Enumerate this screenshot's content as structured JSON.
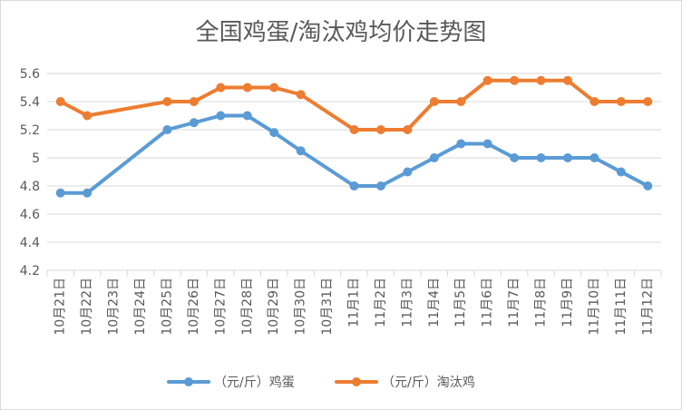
{
  "chart_data": {
    "type": "line",
    "title": "全国鸡蛋/淘汰鸡均价走势图",
    "xlabel": "",
    "ylabel": "",
    "categories": [
      "10月21日",
      "10月22日",
      "10月23日",
      "10月24日",
      "10月25日",
      "10月26日",
      "10月27日",
      "10月28日",
      "10月29日",
      "10月30日",
      "10月31日",
      "11月1日",
      "11月2日",
      "11月3日",
      "11月4日",
      "11月5日",
      "11月6日",
      "11月7日",
      "11月8日",
      "11月9日",
      "11月10日",
      "11月11日",
      "11月12日"
    ],
    "y_ticks": [
      "4.2",
      "4.4",
      "4.6",
      "4.8",
      "5",
      "5.2",
      "5.4",
      "5.6"
    ],
    "ylim": [
      4.2,
      5.6
    ],
    "grid": true,
    "legend_position": "bottom",
    "series": [
      {
        "name": "（元/斤）鸡蛋",
        "color": "#5b9bd5",
        "values": [
          4.75,
          4.75,
          null,
          null,
          5.2,
          5.25,
          5.3,
          5.3,
          5.18,
          5.05,
          null,
          4.8,
          4.8,
          4.9,
          5.0,
          5.1,
          5.1,
          5.0,
          5.0,
          5.0,
          5.0,
          4.9,
          4.8
        ]
      },
      {
        "name": "（元/斤）淘汰鸡",
        "color": "#ed7d31",
        "values": [
          5.4,
          5.3,
          null,
          null,
          5.4,
          5.4,
          5.5,
          5.5,
          5.5,
          5.45,
          null,
          5.2,
          5.2,
          5.2,
          5.4,
          5.4,
          5.55,
          5.55,
          5.55,
          5.55,
          5.4,
          5.4,
          5.4
        ]
      }
    ]
  }
}
